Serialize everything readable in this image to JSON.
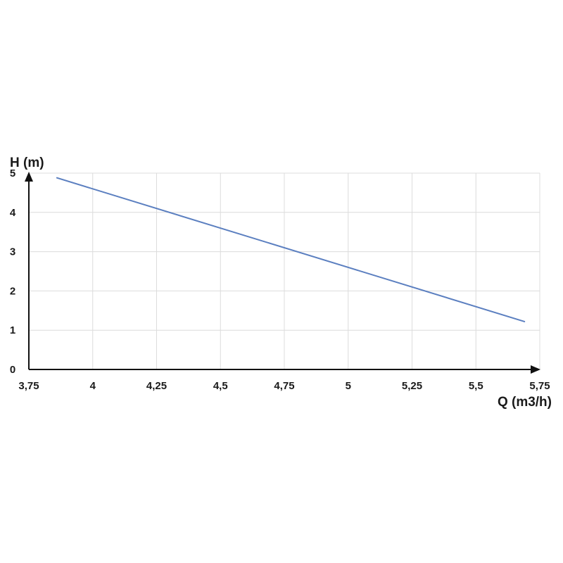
{
  "chart_data": {
    "type": "line",
    "xlabel": "Q (m3/h)",
    "ylabel": "H (m)",
    "xlim": [
      3.75,
      5.75
    ],
    "ylim": [
      0,
      5
    ],
    "x_ticks": [
      3.75,
      4,
      4.25,
      4.5,
      4.75,
      5,
      5.25,
      5.5,
      5.75
    ],
    "x_tick_labels": [
      "3,75",
      "4",
      "4,25",
      "4,5",
      "4,75",
      "5",
      "5,25",
      "5,5",
      "5,75"
    ],
    "y_ticks": [
      0,
      1,
      2,
      3,
      4,
      5
    ],
    "y_tick_labels": [
      "0",
      "1",
      "2",
      "3",
      "4",
      "5"
    ],
    "grid": true,
    "series": [
      {
        "x": [
          3.86,
          5.69
        ],
        "y": [
          4.88,
          1.22
        ],
        "color": "#5b7fc0"
      }
    ]
  }
}
